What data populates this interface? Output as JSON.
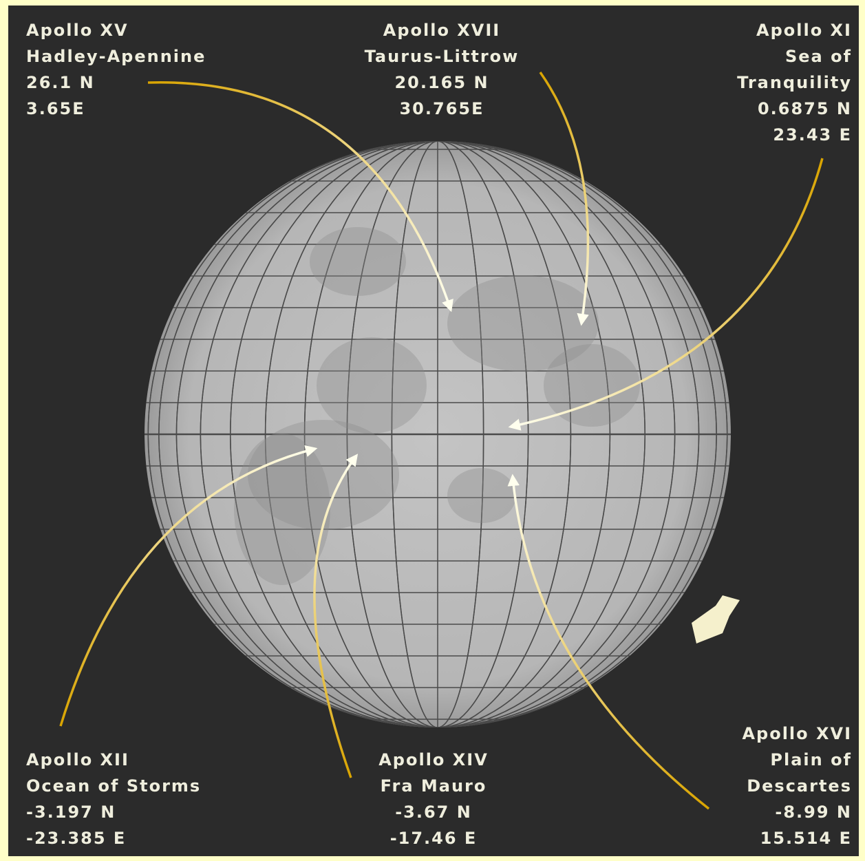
{
  "labels": [
    {
      "mission": "Apollo XV",
      "site": [
        "Hadley-Apennine"
      ],
      "latitude": "26.1 N",
      "longitude": "3.65E"
    },
    {
      "mission": "Apollo XVII",
      "site": [
        "Taurus-Littrow"
      ],
      "latitude": "20.165 N",
      "longitude": "30.765E"
    },
    {
      "mission": "Apollo XI",
      "site": [
        "Sea of",
        "Tranquility"
      ],
      "latitude": "0.6875 N",
      "longitude": "23.43 E"
    },
    {
      "mission": "Apollo XII",
      "site": [
        "Ocean of Storms"
      ],
      "latitude": "-3.197 N",
      "longitude": "-23.385 E"
    },
    {
      "mission": "Apollo XIV",
      "site": [
        "Fra Mauro"
      ],
      "latitude": "-3.67 N",
      "longitude": "-17.46 E"
    },
    {
      "mission": "Apollo XVI",
      "site": [
        "Plain of",
        "Descartes"
      ],
      "latitude": "-8.99 N",
      "longitude": "15.514 E"
    }
  ]
}
